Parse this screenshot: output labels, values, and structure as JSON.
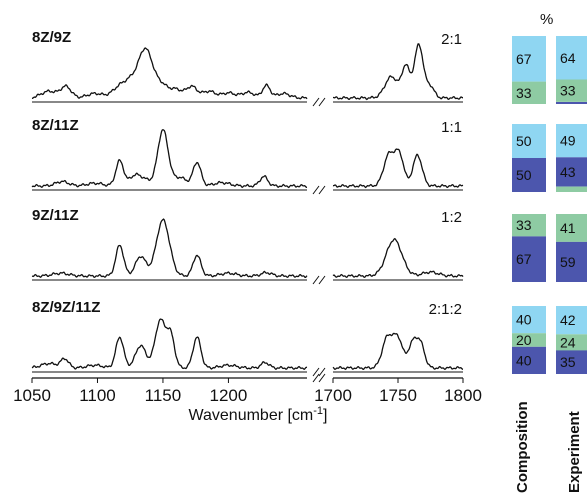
{
  "figure": {
    "top_text": "% ",
    "pct_label": "%",
    "xlabel_main": "Wavenumber [cm",
    "xlabel_sup": "-1",
    "xlabel_end": "]",
    "col_labels": [
      "Composition",
      "Experiment"
    ]
  },
  "colors": {
    "light": "#8fd6f2",
    "green": "#8ecba3",
    "dark": "#4c56ad",
    "line": "#111111"
  },
  "chart_data": {
    "type": "line",
    "x_segments": [
      {
        "ticks": [
          "1050",
          "1100",
          "1150",
          "1200"
        ],
        "xlim": [
          1050,
          1260
        ]
      },
      {
        "ticks": [
          "1700",
          "1750",
          "1800"
        ],
        "xlim": [
          1700,
          1800
        ]
      }
    ],
    "xlabel": "Wavenumber [cm-1]",
    "panels": [
      {
        "name": "8Z/9Z",
        "ratio": "2:1",
        "peaks_left": [
          [
            1063,
            0.12,
            6
          ],
          [
            1076,
            0.2,
            4
          ],
          [
            1098,
            0.08,
            6
          ],
          [
            1118,
            0.22,
            6
          ],
          [
            1128,
            0.3,
            5
          ],
          [
            1135,
            0.55,
            4
          ],
          [
            1140,
            0.42,
            4
          ],
          [
            1148,
            0.25,
            5
          ],
          [
            1160,
            0.15,
            5
          ],
          [
            1172,
            0.2,
            4
          ],
          [
            1185,
            0.12,
            5
          ],
          [
            1200,
            0.09,
            5
          ],
          [
            1215,
            0.1,
            5
          ],
          [
            1229,
            0.22,
            3
          ],
          [
            1242,
            0.08,
            5
          ]
        ],
        "peaks_right": [
          [
            1745,
            0.38,
            5
          ],
          [
            1756,
            0.55,
            3
          ],
          [
            1766,
            0.95,
            3.5
          ],
          [
            1775,
            0.2,
            3
          ]
        ],
        "bars": {
          "composition": [
            {
              "color": "light",
              "value": 67
            },
            {
              "color": "green",
              "value": 33
            }
          ],
          "experiment": [
            {
              "color": "light",
              "value": 64
            },
            {
              "color": "green",
              "value": 33
            },
            {
              "color": "dark",
              "value": 3
            }
          ]
        }
      },
      {
        "name": "8Z/11Z",
        "ratio": "1:1",
        "peaks_left": [
          [
            1073,
            0.08,
            5
          ],
          [
            1098,
            0.05,
            6
          ],
          [
            1117,
            0.45,
            3
          ],
          [
            1128,
            0.15,
            4
          ],
          [
            1135,
            0.12,
            5
          ],
          [
            1150,
            1.0,
            4
          ],
          [
            1163,
            0.15,
            5
          ],
          [
            1176,
            0.42,
            3
          ],
          [
            1195,
            0.06,
            6
          ],
          [
            1227,
            0.17,
            3
          ]
        ],
        "peaks_right": [
          [
            1743,
            0.55,
            4
          ],
          [
            1751,
            0.55,
            3.5
          ],
          [
            1765,
            0.55,
            3.5
          ]
        ],
        "bars": {
          "composition": [
            {
              "color": "light",
              "value": 50
            },
            {
              "color": "dark",
              "value": 50
            }
          ],
          "experiment": [
            {
              "color": "light",
              "value": 49
            },
            {
              "color": "dark",
              "value": 43
            },
            {
              "color": "green",
              "value": 8
            }
          ]
        }
      },
      {
        "name": "9Z/11Z",
        "ratio": "1:2",
        "peaks_left": [
          [
            1072,
            0.05,
            6
          ],
          [
            1117,
            0.55,
            3
          ],
          [
            1133,
            0.35,
            4
          ],
          [
            1150,
            1.0,
            5
          ],
          [
            1176,
            0.37,
            3
          ],
          [
            1200,
            0.05,
            6
          ],
          [
            1229,
            0.06,
            4
          ]
        ],
        "peaks_right": [
          [
            1747,
            0.65,
            6
          ],
          [
            1775,
            0.07,
            6
          ]
        ],
        "bars": {
          "composition": [
            {
              "color": "green",
              "value": 33
            },
            {
              "color": "dark",
              "value": 67
            }
          ],
          "experiment": [
            {
              "color": "green",
              "value": 41
            },
            {
              "color": "dark",
              "value": 59
            }
          ]
        }
      },
      {
        "name": "8Z/9Z/11Z",
        "ratio": "2:1:2",
        "peaks_left": [
          [
            1063,
            0.08,
            6
          ],
          [
            1075,
            0.16,
            3
          ],
          [
            1098,
            0.05,
            6
          ],
          [
            1117,
            0.55,
            3
          ],
          [
            1133,
            0.4,
            4
          ],
          [
            1148,
            0.85,
            4
          ],
          [
            1156,
            0.55,
            3
          ],
          [
            1176,
            0.55,
            3
          ],
          [
            1200,
            0.05,
            6
          ],
          [
            1228,
            0.1,
            3
          ]
        ],
        "peaks_right": [
          [
            1742,
            0.55,
            4
          ],
          [
            1750,
            0.5,
            3.5
          ],
          [
            1762,
            0.48,
            4
          ],
          [
            1768,
            0.3,
            3
          ]
        ],
        "bars": {
          "composition": [
            {
              "color": "light",
              "value": 40
            },
            {
              "color": "green",
              "value": 20
            },
            {
              "color": "dark",
              "value": 40
            }
          ],
          "experiment": [
            {
              "color": "light",
              "value": 42
            },
            {
              "color": "green",
              "value": 24
            },
            {
              "color": "dark",
              "value": 35
            }
          ]
        }
      }
    ]
  }
}
